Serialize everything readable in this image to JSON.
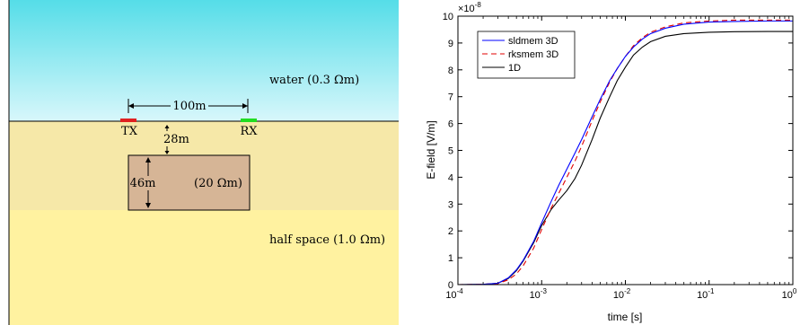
{
  "schematic": {
    "water_label": "water (0.3 Ωm)",
    "halfspace_label": "half space (1.0 Ωm)",
    "tx_label": "TX",
    "rx_label": "RX",
    "offset_label": "100m",
    "depth_label": "28m",
    "thickness_label": "46m",
    "block_label": "(20 Ωm)",
    "colors": {
      "water_top": "#55dde8",
      "water_bottom": "#d8f7fb",
      "sediment": "#f6e8a8",
      "halfspace": "#fff2a0",
      "block": "#d6b596",
      "tx": "#e02020",
      "rx": "#22dd22"
    }
  },
  "chart_data": {
    "type": "line",
    "xscale": "log",
    "xlim": [
      0.0001,
      1
    ],
    "ylim": [
      0,
      1e-07
    ],
    "y_multiplier_label": "×10",
    "y_multiplier_exponent": "-8",
    "xlabel": "time [s]",
    "ylabel": "E-field [V/m]",
    "x_ticks": [
      {
        "value": 0.0001,
        "base": "10",
        "exp": "-4"
      },
      {
        "value": 0.001,
        "base": "10",
        "exp": "-3"
      },
      {
        "value": 0.01,
        "base": "10",
        "exp": "-2"
      },
      {
        "value": 0.1,
        "base": "10",
        "exp": "-1"
      },
      {
        "value": 1,
        "base": "10",
        "exp": "0"
      }
    ],
    "y_ticks": [
      {
        "value": 0,
        "label": "0"
      },
      {
        "value": 1e-08,
        "label": "1"
      },
      {
        "value": 2e-08,
        "label": "2"
      },
      {
        "value": 3e-08,
        "label": "3"
      },
      {
        "value": 4e-08,
        "label": "4"
      },
      {
        "value": 5e-08,
        "label": "5"
      },
      {
        "value": 6e-08,
        "label": "6"
      },
      {
        "value": 7e-08,
        "label": "7"
      },
      {
        "value": 8e-08,
        "label": "8"
      },
      {
        "value": 9e-08,
        "label": "9"
      },
      {
        "value": 1e-07,
        "label": "10"
      }
    ],
    "legend_position": "top-left",
    "series": [
      {
        "name": "sldmem 3D",
        "color": "#0000ff",
        "dash": "",
        "x": [
          0.0001,
          0.0002,
          0.0003,
          0.0004,
          0.0005,
          0.0006,
          0.0008,
          0.001,
          0.0013,
          0.0016,
          0.002,
          0.0025,
          0.003,
          0.004,
          0.005,
          0.0065,
          0.008,
          0.01,
          0.0125,
          0.016,
          0.02,
          0.03,
          0.05,
          0.1,
          0.2,
          0.5,
          1
        ],
        "y": [
          0,
          1e-10,
          5e-10,
          2.5e-09,
          5.5e-09,
          9e-09,
          1.6e-08,
          2.3e-08,
          3.1e-08,
          3.7e-08,
          4.3e-08,
          4.9e-08,
          5.4e-08,
          6.25e-08,
          6.9e-08,
          7.6e-08,
          8.05e-08,
          8.5e-08,
          8.85e-08,
          9.15e-08,
          9.35e-08,
          9.55e-08,
          9.7e-08,
          9.78e-08,
          9.8e-08,
          9.82e-08,
          9.82e-08
        ]
      },
      {
        "name": "rksmem 3D",
        "color": "#e00000",
        "dash": "6,4",
        "x": [
          0.0001,
          0.0002,
          0.0003,
          0.0004,
          0.0005,
          0.0006,
          0.0008,
          0.001,
          0.0013,
          0.0016,
          0.002,
          0.0025,
          0.003,
          0.004,
          0.005,
          0.0065,
          0.008,
          0.01,
          0.0125,
          0.016,
          0.02,
          0.03,
          0.05,
          0.1,
          0.2,
          0.5,
          1
        ],
        "y": [
          0,
          1e-10,
          4e-10,
          1.8e-09,
          4e-09,
          7e-09,
          1.35e-08,
          2.05e-08,
          2.85e-08,
          3.4e-08,
          4e-08,
          4.6e-08,
          5.15e-08,
          6.1e-08,
          6.8e-08,
          7.55e-08,
          8.05e-08,
          8.5e-08,
          8.9e-08,
          9.2e-08,
          9.4e-08,
          9.6e-08,
          9.75e-08,
          9.82e-08,
          9.85e-08,
          9.85e-08,
          9.85e-08
        ]
      },
      {
        "name": "1D",
        "color": "#000000",
        "dash": "",
        "x": [
          0.0001,
          0.0002,
          0.0003,
          0.0004,
          0.0005,
          0.0006,
          0.0008,
          0.001,
          0.0013,
          0.0016,
          0.002,
          0.0025,
          0.003,
          0.004,
          0.005,
          0.0065,
          0.008,
          0.01,
          0.0125,
          0.016,
          0.02,
          0.03,
          0.05,
          0.1,
          0.2,
          0.5,
          1
        ],
        "y": [
          0,
          1e-10,
          5e-10,
          2.3e-09,
          5.2e-09,
          8.7e-09,
          1.55e-08,
          2.2e-08,
          2.8e-08,
          3.15e-08,
          3.5e-08,
          3.95e-08,
          4.45e-08,
          5.4e-08,
          6.2e-08,
          7e-08,
          7.6e-08,
          8.1e-08,
          8.55e-08,
          8.85e-08,
          9.05e-08,
          9.25e-08,
          9.35e-08,
          9.4e-08,
          9.42e-08,
          9.43e-08,
          9.43e-08
        ]
      }
    ]
  }
}
